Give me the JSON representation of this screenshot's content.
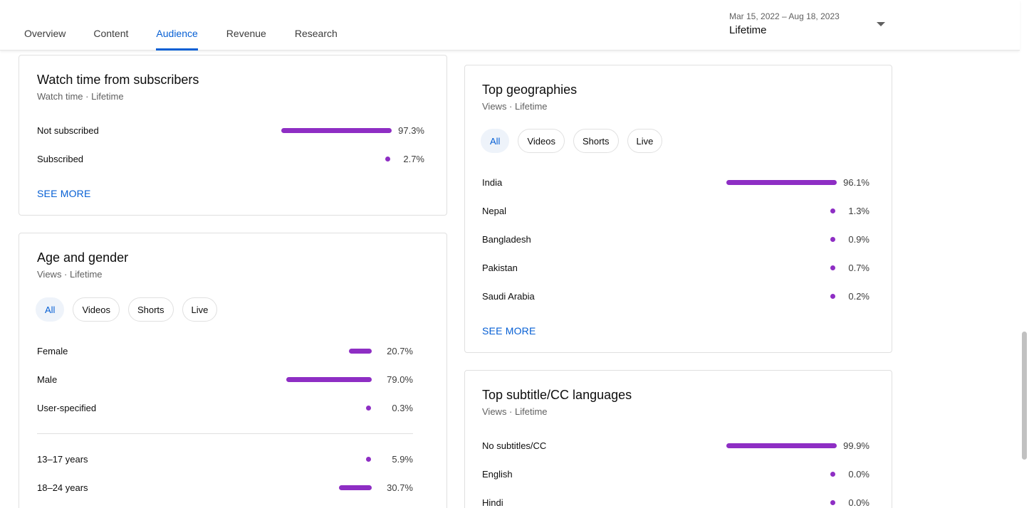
{
  "tabs": [
    {
      "label": "Overview"
    },
    {
      "label": "Content"
    },
    {
      "label": "Audience"
    },
    {
      "label": "Revenue"
    },
    {
      "label": "Research"
    }
  ],
  "date_picker": {
    "range": "Mar 15, 2022 – Aug 18, 2023",
    "label": "Lifetime"
  },
  "colors": {
    "accent": "#065fd4",
    "bar": "#8e2ec4"
  },
  "watch_time": {
    "title": "Watch time from subscribers",
    "subtitle": "Watch time · Lifetime",
    "rows": [
      {
        "label": "Not subscribed",
        "value": "97.3%",
        "fraction": 0.973
      },
      {
        "label": "Subscribed",
        "value": "2.7%",
        "fraction": 0.027
      }
    ],
    "see_more": "SEE MORE"
  },
  "age_gender": {
    "title": "Age and gender",
    "subtitle": "Views · Lifetime",
    "chips": [
      "All",
      "Videos",
      "Shorts",
      "Live"
    ],
    "gender_rows": [
      {
        "label": "Female",
        "value": "20.7%",
        "fraction": 0.207
      },
      {
        "label": "Male",
        "value": "79.0%",
        "fraction": 0.79
      },
      {
        "label": "User-specified",
        "value": "0.3%",
        "fraction": 0.003
      }
    ],
    "age_rows": [
      {
        "label": "13–17 years",
        "value": "5.9%",
        "fraction": 0.059
      },
      {
        "label": "18–24 years",
        "value": "30.7%",
        "fraction": 0.307
      }
    ]
  },
  "geographies": {
    "title": "Top geographies",
    "subtitle": "Views · Lifetime",
    "chips": [
      "All",
      "Videos",
      "Shorts",
      "Live"
    ],
    "rows": [
      {
        "label": "India",
        "value": "96.1%",
        "fraction": 0.961
      },
      {
        "label": "Nepal",
        "value": "1.3%",
        "fraction": 0.013
      },
      {
        "label": "Bangladesh",
        "value": "0.9%",
        "fraction": 0.009
      },
      {
        "label": "Pakistan",
        "value": "0.7%",
        "fraction": 0.007
      },
      {
        "label": "Saudi Arabia",
        "value": "0.2%",
        "fraction": 0.002
      }
    ],
    "see_more": "SEE MORE"
  },
  "subtitles": {
    "title": "Top subtitle/CC languages",
    "subtitle": "Views · Lifetime",
    "rows": [
      {
        "label": "No subtitles/CC",
        "value": "99.9%",
        "fraction": 0.999
      },
      {
        "label": "English",
        "value": "0.0%",
        "fraction": 0.0
      },
      {
        "label": "Hindi",
        "value": "0.0%",
        "fraction": 0.0
      }
    ]
  }
}
